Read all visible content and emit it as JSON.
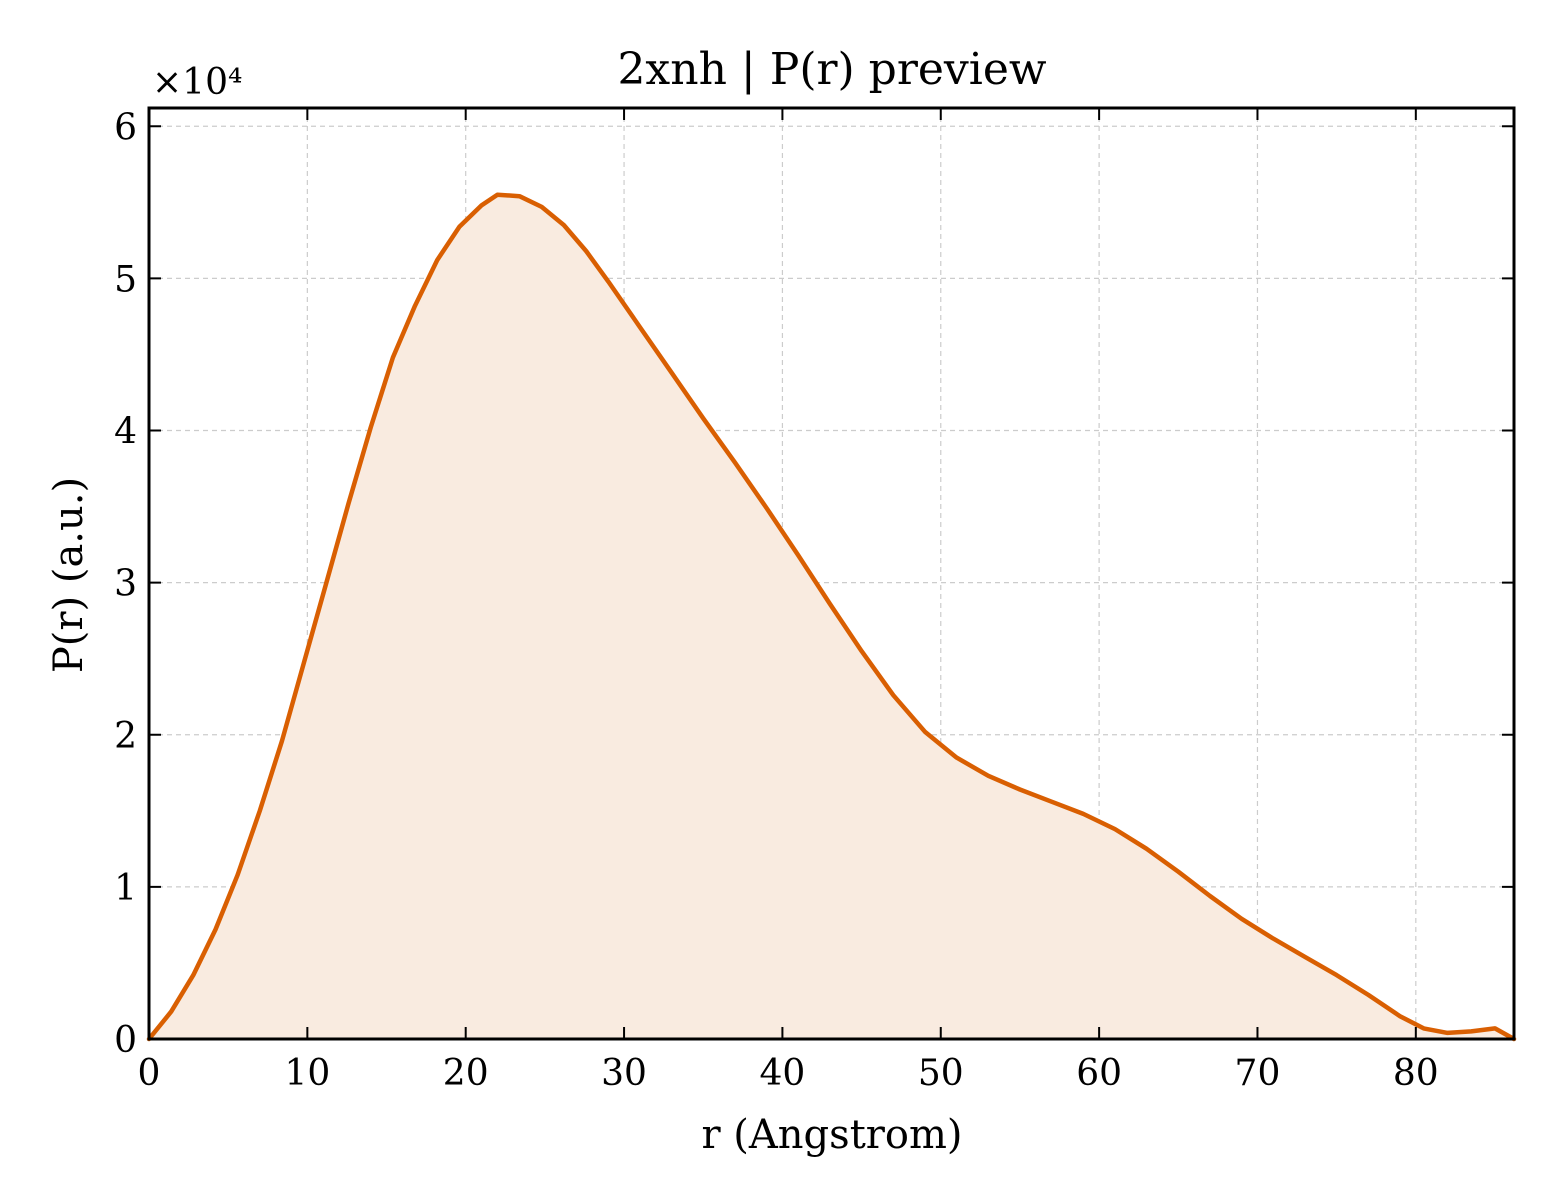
{
  "chart_data": {
    "type": "area",
    "title": "2xnh | P(r) preview",
    "xlabel": "r (Angstrom)",
    "ylabel": "P(r) (a.u.)",
    "y_multiplier_label": "×10⁴",
    "xlim": [
      0,
      86.2
    ],
    "ylim": [
      0,
      6.12
    ],
    "xticks": [
      "0",
      "10",
      "20",
      "30",
      "40",
      "50",
      "60",
      "70",
      "80"
    ],
    "yticks": [
      "0",
      "1",
      "2",
      "3",
      "4",
      "5",
      "6"
    ],
    "grid": true,
    "series": [
      {
        "color": "#d95f02",
        "fill_color": "#f9ebe0",
        "x": [
          0,
          1.4,
          2.8,
          4.2,
          5.6,
          7.0,
          8.4,
          9.8,
          11.2,
          12.6,
          14.0,
          15.4,
          16.8,
          18.2,
          19.6,
          21.0,
          22.0,
          23.4,
          24.8,
          26.2,
          27.6,
          29.0,
          31.0,
          33.0,
          35.0,
          37.0,
          39.0,
          41.0,
          43.0,
          45.0,
          47.0,
          49.0,
          51.0,
          53.0,
          55.0,
          57.0,
          59.0,
          61.0,
          63.0,
          65.0,
          67.0,
          69.0,
          71.0,
          73.0,
          75.0,
          77.0,
          79.0,
          80.5,
          82.0,
          83.5,
          85.0,
          86.2
        ],
        "y": [
          0,
          0.18,
          0.42,
          0.72,
          1.08,
          1.5,
          1.96,
          2.48,
          3.0,
          3.52,
          4.02,
          4.48,
          4.82,
          5.12,
          5.34,
          5.48,
          5.55,
          5.54,
          5.47,
          5.35,
          5.18,
          4.98,
          4.68,
          4.38,
          4.08,
          3.79,
          3.49,
          3.18,
          2.86,
          2.55,
          2.26,
          2.02,
          1.85,
          1.73,
          1.64,
          1.56,
          1.48,
          1.38,
          1.25,
          1.1,
          0.94,
          0.79,
          0.66,
          0.54,
          0.42,
          0.29,
          0.15,
          0.07,
          0.04,
          0.05,
          0.07,
          0.0
        ]
      }
    ]
  }
}
